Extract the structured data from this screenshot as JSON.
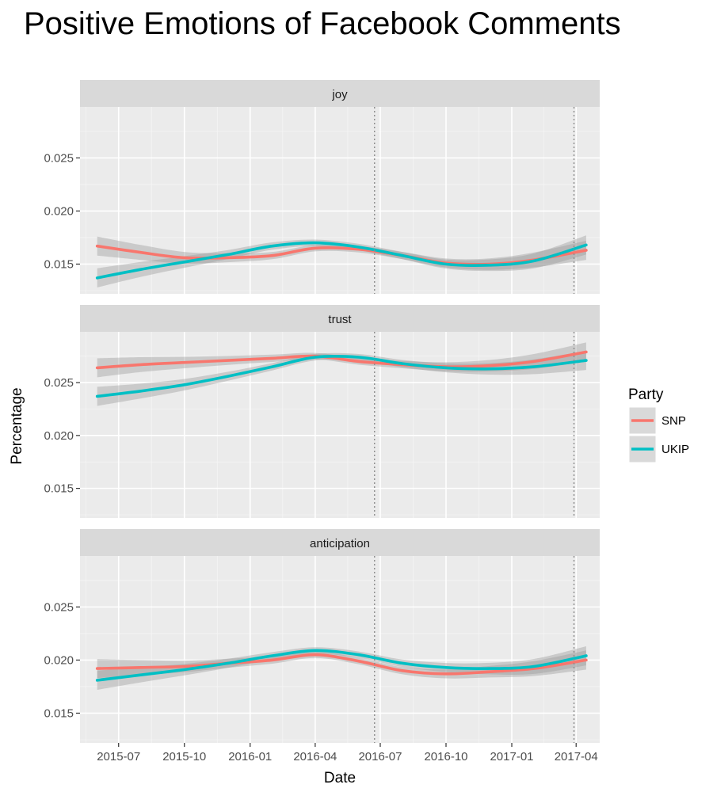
{
  "chart_data": {
    "type": "line",
    "title": "Positive Emotions of Facebook Comments",
    "xlabel": "Date",
    "ylabel": "Percentage",
    "x_ticks": [
      "2015-07",
      "2015-10",
      "2016-01",
      "2016-04",
      "2016-07",
      "2016-10",
      "2017-01",
      "2017-04"
    ],
    "y_ticks": [
      "0.015",
      "0.020",
      "0.025"
    ],
    "ylim": [
      0.0122,
      0.0298
    ],
    "reference_lines": [
      "2016-06-23",
      "2017-03-29"
    ],
    "grid": true,
    "legend": {
      "title": "Party",
      "position": "right"
    },
    "x": [
      "2015-06-01",
      "2015-08-01",
      "2015-10-01",
      "2015-12-01",
      "2016-02-01",
      "2016-04-01",
      "2016-06-01",
      "2016-08-01",
      "2016-10-01",
      "2016-12-01",
      "2017-02-01",
      "2017-04-15"
    ],
    "facets": [
      {
        "label": "joy",
        "series": [
          {
            "name": "SNP",
            "color": "#F8766D",
            "values": [
              0.0167,
              0.0161,
              0.0156,
              0.0156,
              0.0158,
              0.0165,
              0.0164,
              0.0158,
              0.0151,
              0.015,
              0.0154,
              0.0163
            ]
          },
          {
            "name": "UKIP",
            "color": "#00BFC4",
            "values": [
              0.0137,
              0.0145,
              0.0152,
              0.0159,
              0.0167,
              0.017,
              0.0166,
              0.0158,
              0.015,
              0.0149,
              0.0153,
              0.0168
            ]
          }
        ]
      },
      {
        "label": "trust",
        "series": [
          {
            "name": "SNP",
            "color": "#F8766D",
            "values": [
              0.0264,
              0.0267,
              0.0269,
              0.0271,
              0.0273,
              0.0275,
              0.027,
              0.0267,
              0.0265,
              0.0266,
              0.027,
              0.0279
            ]
          },
          {
            "name": "UKIP",
            "color": "#00BFC4",
            "values": [
              0.0237,
              0.0242,
              0.0248,
              0.0256,
              0.0265,
              0.0274,
              0.0274,
              0.0268,
              0.0264,
              0.0263,
              0.0265,
              0.0271
            ]
          }
        ]
      },
      {
        "label": "anticipation",
        "series": [
          {
            "name": "SNP",
            "color": "#F8766D",
            "values": [
              0.0192,
              0.0193,
              0.0194,
              0.0197,
              0.02,
              0.0205,
              0.0199,
              0.019,
              0.0187,
              0.0189,
              0.0192,
              0.02
            ]
          },
          {
            "name": "UKIP",
            "color": "#00BFC4",
            "values": [
              0.0181,
              0.0186,
              0.0191,
              0.0197,
              0.0204,
              0.0209,
              0.0205,
              0.0197,
              0.0193,
              0.0192,
              0.0194,
              0.0204
            ]
          }
        ]
      }
    ]
  }
}
